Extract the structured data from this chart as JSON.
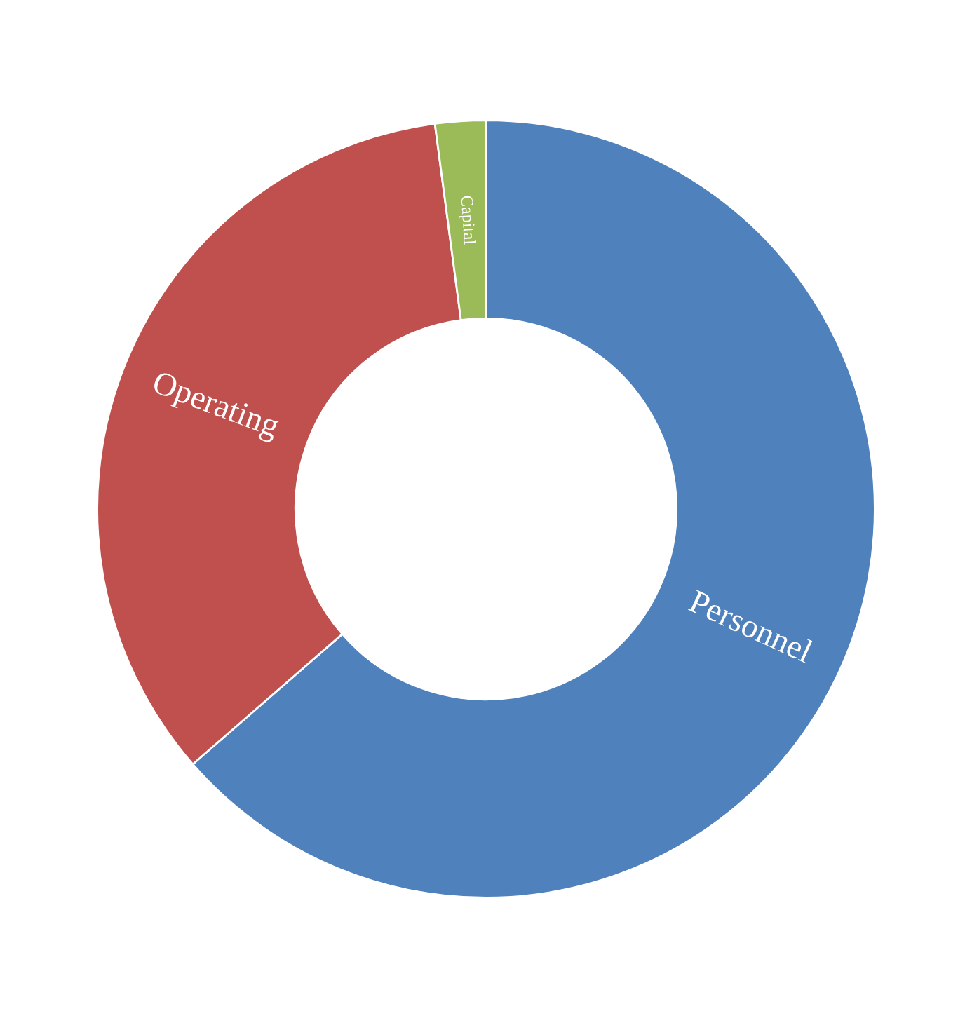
{
  "chart_data": {
    "type": "donut",
    "categories": [
      "Personnel",
      "Operating",
      "Capital"
    ],
    "values": [
      63.6,
      34.3,
      2.1
    ],
    "colors": [
      "#4f81bd",
      "#c0504d",
      "#9bbb59"
    ],
    "legend": false
  }
}
